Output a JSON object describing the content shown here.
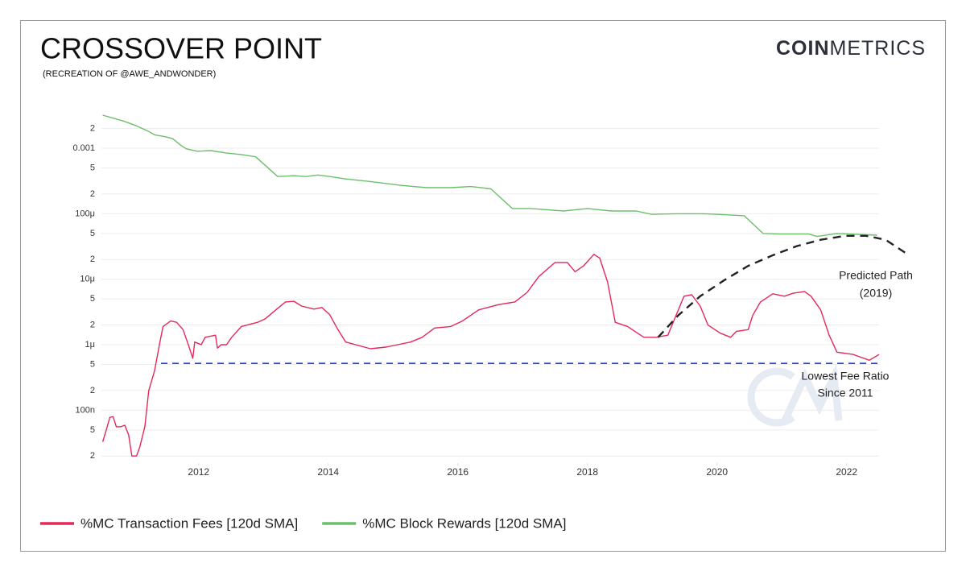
{
  "chart_data": {
    "type": "line",
    "title": "CROSSOVER POINT",
    "subtitle": "(RECREATION OF @AWE_ANDWONDER)",
    "logo": {
      "bold": "COIN",
      "light": "METRICS"
    },
    "yscale": "log",
    "grid": true,
    "legend": "bottom-left",
    "xlim": [
      2010.5,
      2022.55
    ],
    "xticks": [
      2012,
      2014,
      2016,
      2018,
      2020,
      2022
    ],
    "ylim": [
      1.56e-08,
      0.00348
    ],
    "yticks": [
      {
        "value": 0.002,
        "label": "2"
      },
      0.001,
      {
        "value": 0.0005,
        "label": "5"
      },
      {
        "value": 0.0002,
        "label": "2"
      },
      {
        "value": 0.0001,
        "label": "100μ"
      },
      {
        "value": 5e-05,
        "label": "5"
      },
      {
        "value": 2e-05,
        "label": "2"
      },
      {
        "value": 1e-05,
        "label": "10μ"
      },
      {
        "value": 5e-06,
        "label": "5"
      },
      {
        "value": 2e-06,
        "label": "2"
      },
      {
        "value": 1e-06,
        "label": "1μ"
      },
      {
        "value": 5e-07,
        "label": "5"
      },
      {
        "value": 2e-07,
        "label": "2"
      },
      {
        "value": 1e-07,
        "label": "100n"
      },
      {
        "value": 5e-08,
        "label": "5"
      },
      {
        "value": 2e-08,
        "label": "2"
      }
    ],
    "series": [
      {
        "name": "%MC Transaction Fees [120d SMA]",
        "color": "#e3285a",
        "x": [
          2010.52,
          2010.57,
          2010.63,
          2010.68,
          2010.73,
          2010.8,
          2010.86,
          2010.92,
          2010.97,
          2011.04,
          2011.09,
          2011.17,
          2011.23,
          2011.32,
          2011.39,
          2011.45,
          2011.57,
          2011.66,
          2011.76,
          2011.85,
          2011.91,
          2011.94,
          2012.04,
          2012.1,
          2012.26,
          2012.29,
          2012.35,
          2012.43,
          2012.51,
          2012.66,
          2012.91,
          2013.03,
          2013.22,
          2013.34,
          2013.47,
          2013.59,
          2013.78,
          2013.9,
          2014.02,
          2014.15,
          2014.27,
          2014.65,
          2014.89,
          2015.27,
          2015.45,
          2015.64,
          2015.89,
          2016.07,
          2016.32,
          2016.63,
          2016.88,
          2017.07,
          2017.25,
          2017.5,
          2017.69,
          2017.81,
          2017.94,
          2018.1,
          2018.19,
          2018.31,
          2018.43,
          2018.62,
          2018.87,
          2019.06,
          2019.24,
          2019.49,
          2019.61,
          2019.74,
          2019.86,
          2020.05,
          2020.21,
          2020.3,
          2020.48,
          2020.55,
          2020.67,
          2020.86,
          2021.04,
          2021.17,
          2021.35,
          2021.45,
          2021.6,
          2021.73,
          2021.85,
          2022.1,
          2022.35,
          2022.5
        ],
        "values": [
          3.3e-08,
          4.8e-08,
          7.8e-08,
          8e-08,
          5.6e-08,
          5.6e-08,
          5.9e-08,
          4.2e-08,
          2e-08,
          2e-08,
          2.7e-08,
          5.6e-08,
          2e-07,
          4e-07,
          9.4e-07,
          1.9e-06,
          2.3e-06,
          2.2e-06,
          1.7e-06,
          9.4e-07,
          6.2e-07,
          1.1e-06,
          1e-06,
          1.3e-06,
          1.4e-06,
          8.9e-07,
          1e-06,
          1e-06,
          1.3e-06,
          1.9e-06,
          2.2e-06,
          2.5e-06,
          3.6e-06,
          4.5e-06,
          4.6e-06,
          3.9e-06,
          3.5e-06,
          3.7e-06,
          2.9e-06,
          1.7e-06,
          1.1e-06,
          8.7e-07,
          9.2e-07,
          1.1e-06,
          1.3e-06,
          1.8e-06,
          1.9e-06,
          2.3e-06,
          3.4e-06,
          4.1e-06,
          4.5e-06,
          6.3e-06,
          1.1e-05,
          1.8e-05,
          1.8e-05,
          1.3e-05,
          1.6e-05,
          2.4e-05,
          2.1e-05,
          9.1e-06,
          2.2e-06,
          1.9e-06,
          1.3e-06,
          1.3e-06,
          1.4e-06,
          5.5e-06,
          5.8e-06,
          3.9e-06,
          2e-06,
          1.5e-06,
          1.3e-06,
          1.6e-06,
          1.7e-06,
          2.8e-06,
          4.5e-06,
          6e-06,
          5.5e-06,
          6.1e-06,
          6.5e-06,
          5.5e-06,
          3.4e-06,
          1.4e-06,
          7.7e-07,
          7.1e-07,
          5.8e-07,
          7.1e-07
        ]
      },
      {
        "name": "%MC Block Rewards [120d SMA]",
        "color": "#6cbf6a",
        "x": [
          2010.52,
          2010.67,
          2010.84,
          2011.04,
          2011.23,
          2011.32,
          2011.48,
          2011.6,
          2011.73,
          2011.81,
          2011.98,
          2012.19,
          2012.41,
          2012.66,
          2012.88,
          2013.22,
          2013.47,
          2013.65,
          2013.84,
          2014.02,
          2014.27,
          2014.65,
          2015.14,
          2015.52,
          2015.89,
          2016.2,
          2016.51,
          2016.84,
          2017.13,
          2017.63,
          2018.0,
          2018.37,
          2018.75,
          2018.99,
          2019.37,
          2019.8,
          2019.99,
          2020.42,
          2020.71,
          2020.98,
          2021.42,
          2021.54,
          2021.85,
          2022.47
        ],
        "values": [
          0.0032,
          0.0029,
          0.0026,
          0.0022,
          0.0018,
          0.0016,
          0.0015,
          0.0014,
          0.0011,
          0.00098,
          0.0009,
          0.00092,
          0.00085,
          0.0008,
          0.00074,
          0.00037,
          0.00038,
          0.00037,
          0.00039,
          0.00037,
          0.00034,
          0.00031,
          0.00027,
          0.00025,
          0.00025,
          0.00026,
          0.00024,
          0.00012,
          0.00012,
          0.00011,
          0.00012,
          0.00011,
          0.00011,
          9.8e-05,
          0.0001,
          0.0001,
          9.8e-05,
          9.3e-05,
          5e-05,
          4.9e-05,
          4.9e-05,
          4.5e-05,
          5e-05,
          4.7e-05
        ]
      }
    ],
    "predicted_path": {
      "label": [
        "Predicted Path",
        "(2019)"
      ],
      "color": "#222222",
      "x": [
        2019.09,
        2019.4,
        2019.74,
        2020.1,
        2020.48,
        2020.85,
        2021.23,
        2021.6,
        2021.98,
        2022.3,
        2022.6,
        2022.97
      ],
      "values": [
        1.3e-06,
        2.8e-06,
        5.5e-06,
        9.5e-06,
        1.6e-05,
        2.3e-05,
        3.2e-05,
        4e-05,
        4.6e-05,
        4.6e-05,
        4e-05,
        2.3e-05
      ]
    },
    "reference_line": {
      "label": [
        "Lowest Fee Ratio",
        "Since 2011"
      ],
      "color": "#2347d6",
      "x": [
        2011.42,
        2022.5
      ],
      "value": 5.2e-07
    }
  }
}
